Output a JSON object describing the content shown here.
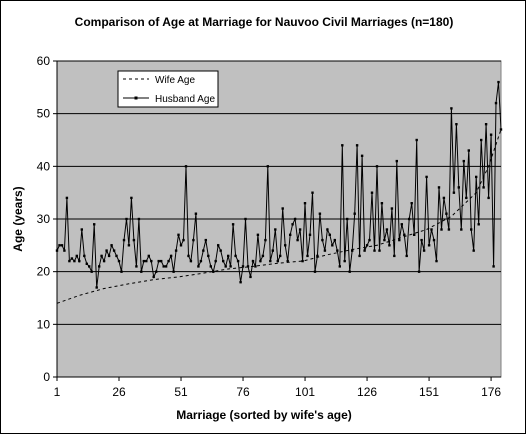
{
  "chart_data": {
    "type": "line",
    "title": "Comparison of Age at Marriage for Nauvoo Civil Marriages (n=180)",
    "xlabel": "Marriage (sorted by wife's age)",
    "ylabel": "Age (years)",
    "xlim": [
      1,
      180
    ],
    "ylim": [
      0,
      60
    ],
    "x_ticks": [
      1,
      26,
      51,
      76,
      101,
      126,
      151,
      176
    ],
    "y_ticks": [
      0,
      10,
      20,
      30,
      40,
      50,
      60
    ],
    "grid": "horizontal",
    "plot_background": "#c0c0c0",
    "legend_position": "top-left",
    "series": [
      {
        "name": "Wife Age",
        "style": "dashed",
        "color": "#000000",
        "x": [
          1,
          10,
          20,
          30,
          40,
          50,
          60,
          70,
          80,
          90,
          100,
          110,
          120,
          130,
          140,
          150,
          160,
          170,
          175,
          180
        ],
        "values": [
          14,
          15.5,
          16.8,
          17.7,
          18.5,
          19,
          19.7,
          20.5,
          21,
          21.6,
          22,
          23.2,
          24.2,
          25,
          26.5,
          28,
          30.5,
          35,
          40,
          47
        ]
      },
      {
        "name": "Husband Age",
        "style": "solid-markers",
        "color": "#000000",
        "values": [
          24,
          25,
          25,
          24,
          34,
          22,
          22.5,
          22,
          23,
          22,
          28,
          23,
          21.5,
          21,
          20,
          29,
          17,
          21,
          23,
          22,
          24,
          23,
          25,
          24,
          23,
          22,
          20,
          26,
          30,
          25,
          34,
          26,
          21,
          30,
          20,
          22,
          22,
          23,
          22,
          19,
          20,
          22,
          22,
          21,
          21,
          22,
          23,
          20,
          24,
          27,
          25,
          26,
          40,
          23,
          22,
          26,
          31,
          21,
          22,
          24,
          26,
          23,
          21,
          20,
          22,
          25,
          24,
          22,
          21,
          23,
          21,
          29,
          23,
          22,
          18,
          21,
          30,
          21,
          19,
          22,
          21,
          27,
          22,
          23,
          26,
          40,
          22,
          24,
          28,
          22,
          23,
          32,
          25,
          22,
          27,
          29,
          30,
          26,
          28,
          22,
          33,
          23,
          27,
          35,
          20,
          23,
          31,
          26,
          24,
          28,
          27,
          25,
          26,
          24,
          21,
          44,
          22,
          30,
          20,
          24,
          31,
          44,
          23,
          42,
          24,
          25,
          26,
          35,
          24,
          40,
          24,
          33,
          26,
          28,
          25,
          32,
          23,
          41,
          26,
          29,
          27,
          23,
          30,
          33,
          27,
          45,
          20,
          26,
          24,
          38,
          25,
          28,
          26,
          22,
          36,
          28,
          34,
          31,
          28,
          51,
          35,
          48,
          36,
          28,
          41,
          34,
          43,
          28,
          24,
          38,
          29,
          45,
          36,
          48,
          34,
          46,
          21,
          52,
          56,
          47
        ]
      }
    ]
  }
}
